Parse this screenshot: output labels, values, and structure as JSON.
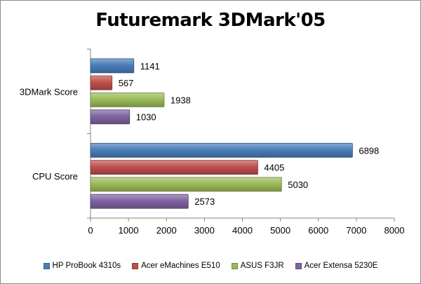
{
  "chart_data": {
    "type": "bar",
    "orientation": "horizontal",
    "title": "Futuremark 3DMark'05",
    "categories": [
      "3DMark Score",
      "CPU Score"
    ],
    "series": [
      {
        "name": "HP ProBook 4310s",
        "color": "#4a7ebb",
        "values": [
          1141,
          6898
        ]
      },
      {
        "name": "Acer eMachines E510",
        "color": "#c0504d",
        "values": [
          567,
          4405
        ]
      },
      {
        "name": "ASUS F3JR",
        "color": "#9bbb59",
        "values": [
          1938,
          5030
        ]
      },
      {
        "name": "Acer Extensa 5230E",
        "color": "#8064a2",
        "values": [
          1030,
          2573
        ]
      }
    ],
    "xlim": [
      0,
      8000
    ],
    "xticks": [
      0,
      1000,
      2000,
      3000,
      4000,
      5000,
      6000,
      7000,
      8000
    ],
    "xlabel": "",
    "ylabel": "",
    "grid": false,
    "data_labels": true,
    "legend_position": "bottom"
  }
}
